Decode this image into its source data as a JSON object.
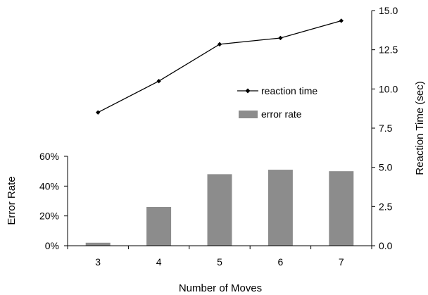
{
  "chart_data": {
    "type": "bar+line",
    "categories": [
      "3",
      "4",
      "5",
      "6",
      "7"
    ],
    "xlabel": "Number of Moves",
    "series": [
      {
        "name": "error rate",
        "type": "bar",
        "axis": "left",
        "values": [
          2,
          26,
          48,
          51,
          50
        ],
        "unit": "%",
        "color": "#8c8c8c"
      },
      {
        "name": "reaction time",
        "type": "line",
        "axis": "right",
        "values": [
          8.5,
          10.5,
          12.85,
          13.25,
          14.35
        ],
        "marker": "diamond",
        "color": "#000000"
      }
    ],
    "left_axis": {
      "label": "Error Rate",
      "ticks": [
        "0%",
        "20%",
        "40%",
        "60%"
      ],
      "ylim": [
        0,
        60
      ]
    },
    "right_axis": {
      "label": "Reaction Time (sec)",
      "ticks": [
        "0.0",
        "2.5",
        "5.0",
        "7.5",
        "10.0",
        "12.5",
        "15.0"
      ],
      "ylim": [
        0,
        15
      ]
    },
    "legend": {
      "placement": "center-right",
      "entries": [
        "reaction time",
        "error rate"
      ]
    },
    "grid": false
  }
}
